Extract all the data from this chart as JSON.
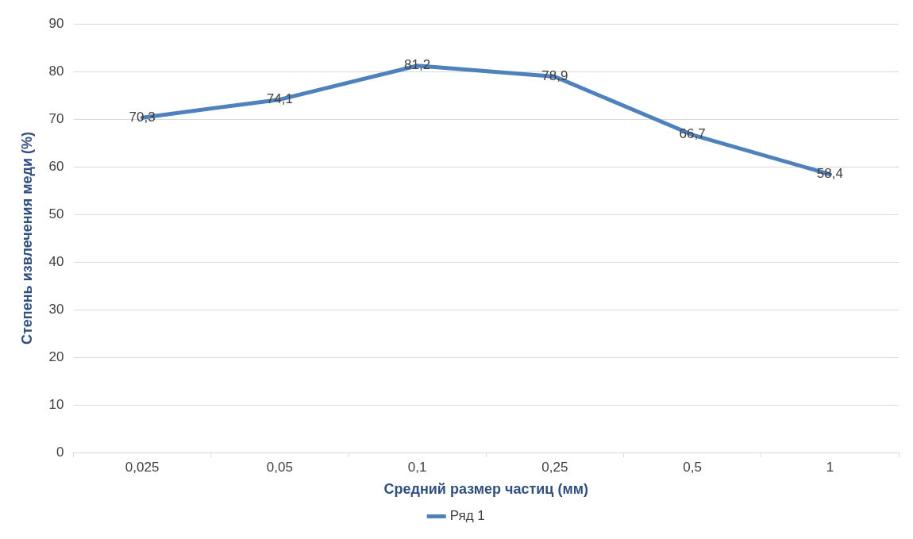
{
  "chart_data": {
    "type": "line",
    "xlabel": "Средний размер частиц (мм)",
    "ylabel": "Степень извлечения меди (%)",
    "categories": [
      "0,025",
      "0,05",
      "0,1",
      "0,25",
      "0,5",
      "1"
    ],
    "series": [
      {
        "name": "Ряд 1",
        "color": "#4f81bd",
        "values": [
          70.3,
          74.1,
          81.2,
          78.9,
          66.7,
          58.4
        ],
        "value_labels": [
          "70,3",
          "74,1",
          "81,2",
          "78,9",
          "66,7",
          "58,4"
        ]
      }
    ],
    "ylim": [
      0,
      90
    ],
    "yticks": [
      0,
      10,
      20,
      30,
      40,
      50,
      60,
      70,
      80,
      90
    ],
    "grid": "y",
    "legend": "bottom",
    "marker": "none",
    "line_style": "solid"
  }
}
